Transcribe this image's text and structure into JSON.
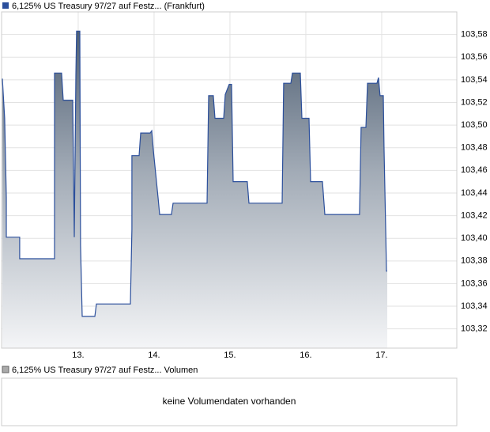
{
  "chart_data": {
    "type": "line",
    "series": [
      {
        "name": "6,125% US Treasury 97/27 auf Festz... (Frankfurt)",
        "color": "#2b4f9c",
        "x": [
          12.0,
          12.031,
          12.052,
          12.052,
          12.229,
          12.229,
          12.688,
          12.688,
          12.781,
          12.802,
          12.927,
          12.948,
          12.969,
          12.979,
          13.021,
          13.031,
          13.052,
          13.219,
          13.24,
          13.688,
          13.708,
          13.708,
          13.802,
          13.823,
          13.948,
          13.969,
          13.99,
          14.052,
          14.073,
          14.229,
          14.25,
          14.698,
          14.719,
          14.781,
          14.802,
          14.917,
          14.938,
          14.99,
          15.021,
          15.042,
          15.229,
          15.25,
          15.688,
          15.708,
          15.802,
          15.823,
          15.927,
          15.948,
          16.042,
          16.063,
          16.219,
          16.25,
          16.708,
          16.729,
          16.792,
          16.813,
          16.938,
          16.958,
          16.979,
          17.021,
          17.031,
          17.052,
          17.063,
          17.073
        ],
        "values": [
          103.541,
          103.506,
          103.436,
          103.401,
          103.401,
          103.382,
          103.382,
          103.546,
          103.546,
          103.522,
          103.522,
          103.401,
          103.544,
          103.583,
          103.583,
          103.394,
          103.331,
          103.331,
          103.342,
          103.342,
          103.408,
          103.473,
          103.473,
          103.493,
          103.493,
          103.495,
          103.478,
          103.436,
          103.421,
          103.421,
          103.431,
          103.431,
          103.526,
          103.526,
          103.506,
          103.506,
          103.527,
          103.536,
          103.536,
          103.45,
          103.45,
          103.431,
          103.431,
          103.537,
          103.537,
          103.546,
          103.546,
          103.506,
          103.506,
          103.45,
          103.45,
          103.421,
          103.421,
          103.498,
          103.498,
          103.537,
          103.537,
          103.542,
          103.526,
          103.526,
          103.481,
          103.408,
          103.371,
          103.371
        ]
      }
    ],
    "xlim": [
      11.99,
      17.99
    ],
    "xticks": [
      {
        "value": 13,
        "label": "13."
      },
      {
        "value": 14,
        "label": "14."
      },
      {
        "value": 15,
        "label": "15."
      },
      {
        "value": 16,
        "label": "16."
      },
      {
        "value": 17,
        "label": "17."
      }
    ],
    "ylim": [
      103.303,
      103.6
    ],
    "yticks": [
      {
        "value": 103.32,
        "label": "103,32"
      },
      {
        "value": 103.34,
        "label": "103,34"
      },
      {
        "value": 103.36,
        "label": "103,36"
      },
      {
        "value": 103.38,
        "label": "103,38"
      },
      {
        "value": 103.4,
        "label": "103,40"
      },
      {
        "value": 103.42,
        "label": "103,42"
      },
      {
        "value": 103.44,
        "label": "103,44"
      },
      {
        "value": 103.46,
        "label": "103,46"
      },
      {
        "value": 103.48,
        "label": "103,48"
      },
      {
        "value": 103.5,
        "label": "103,50"
      },
      {
        "value": 103.52,
        "label": "103,52"
      },
      {
        "value": 103.54,
        "label": "103,54"
      },
      {
        "value": 103.56,
        "label": "103,56"
      },
      {
        "value": 103.58,
        "label": "103,58"
      }
    ],
    "grid": true
  },
  "volume_panel": {
    "legend": "6,125% US Treasury 97/27 auf Festz... Volumen",
    "message": "keine Volumendaten vorhanden"
  }
}
